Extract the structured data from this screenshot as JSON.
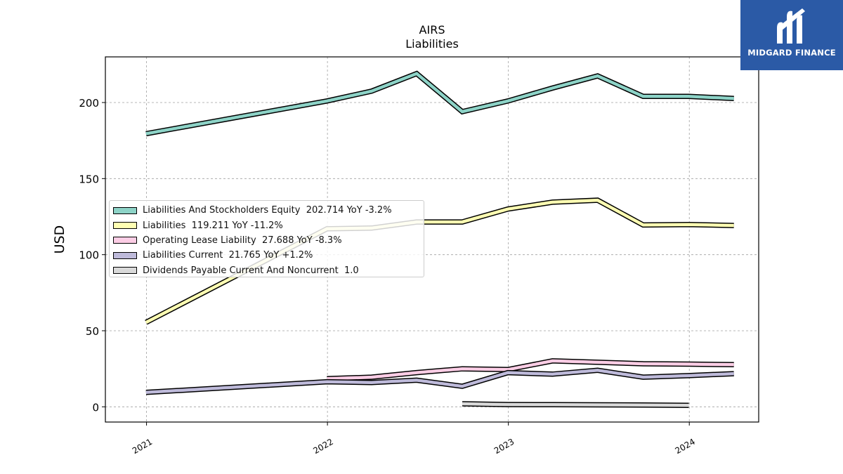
{
  "chart_data": {
    "type": "line",
    "title": "AIRS",
    "subtitle": "Liabilities",
    "xlabel": "",
    "ylabel": "USD",
    "ylim": [
      -10,
      230
    ],
    "xlim": [
      "2020-10-10",
      "2024-05-20"
    ],
    "grid": true,
    "legend_position": "center-left",
    "y_ticks": [
      0,
      50,
      100,
      150,
      200
    ],
    "x_ticks": [
      "2021",
      "2022",
      "2023",
      "2024"
    ],
    "series": [
      {
        "name": "Liabilities And Stockholders Equity",
        "legend": "Liabilities And Stockholders Equity  202.714 YoY -3.2%",
        "color": "#8dd3c7",
        "x": [
          "2020-12-31",
          "2021-12-31",
          "2022-03-31",
          "2022-06-30",
          "2022-09-30",
          "2022-12-31",
          "2023-03-31",
          "2023-06-30",
          "2023-09-30",
          "2023-12-31",
          "2024-03-31"
        ],
        "y": [
          179.5,
          201.0,
          207.5,
          219.0,
          194.0,
          201.0,
          209.5,
          217.5,
          204.0,
          204.0,
          202.7
        ]
      },
      {
        "name": "Liabilities",
        "legend": "Liabilities  119.211 YoY -11.2%",
        "color": "#ffffb3",
        "x": [
          "2020-12-31",
          "2021-12-31",
          "2022-03-31",
          "2022-06-30",
          "2022-09-30",
          "2022-12-31",
          "2023-03-31",
          "2023-06-30",
          "2023-09-30",
          "2023-12-31",
          "2024-03-31"
        ],
        "y": [
          55.5,
          117.0,
          117.5,
          121.5,
          121.5,
          130.0,
          134.5,
          135.8,
          119.5,
          119.8,
          119.2
        ]
      },
      {
        "name": "Operating Lease Liability",
        "legend": "Operating Lease Liability  27.688 YoY -8.3%",
        "color": "#fccde5",
        "x": [
          "2021-12-31",
          "2022-03-31",
          "2022-06-30",
          "2022-09-30",
          "2022-12-31",
          "2023-03-31",
          "2023-06-30",
          "2023-09-30",
          "2023-12-31",
          "2024-03-31"
        ],
        "y": [
          18.5,
          19.5,
          22.5,
          25.0,
          24.5,
          30.2,
          29.3,
          28.3,
          28.1,
          27.7
        ]
      },
      {
        "name": "Liabilities Current",
        "legend": "Liabilities Current  21.765 YoY +1.2%",
        "color": "#bebada",
        "x": [
          "2020-12-31",
          "2021-12-31",
          "2022-03-31",
          "2022-06-30",
          "2022-09-30",
          "2022-12-31",
          "2023-03-31",
          "2023-06-30",
          "2023-09-30",
          "2023-12-31",
          "2024-03-31"
        ],
        "y": [
          9.5,
          16.5,
          16.0,
          17.5,
          13.5,
          22.5,
          21.5,
          24.0,
          19.5,
          20.5,
          21.8
        ]
      },
      {
        "name": "Dividends Payable Current And Noncurrent",
        "legend": "Dividends Payable Current And Noncurrent  1.0",
        "color": "#d9d9d9",
        "x": [
          "2022-09-30",
          "2022-12-31",
          "2023-03-31",
          "2023-06-30",
          "2023-09-30",
          "2023-12-31"
        ],
        "y": [
          2.0,
          1.5,
          1.4,
          1.3,
          1.2,
          1.0
        ]
      }
    ]
  },
  "logo": {
    "text": "MIDGARD FINANCE"
  }
}
